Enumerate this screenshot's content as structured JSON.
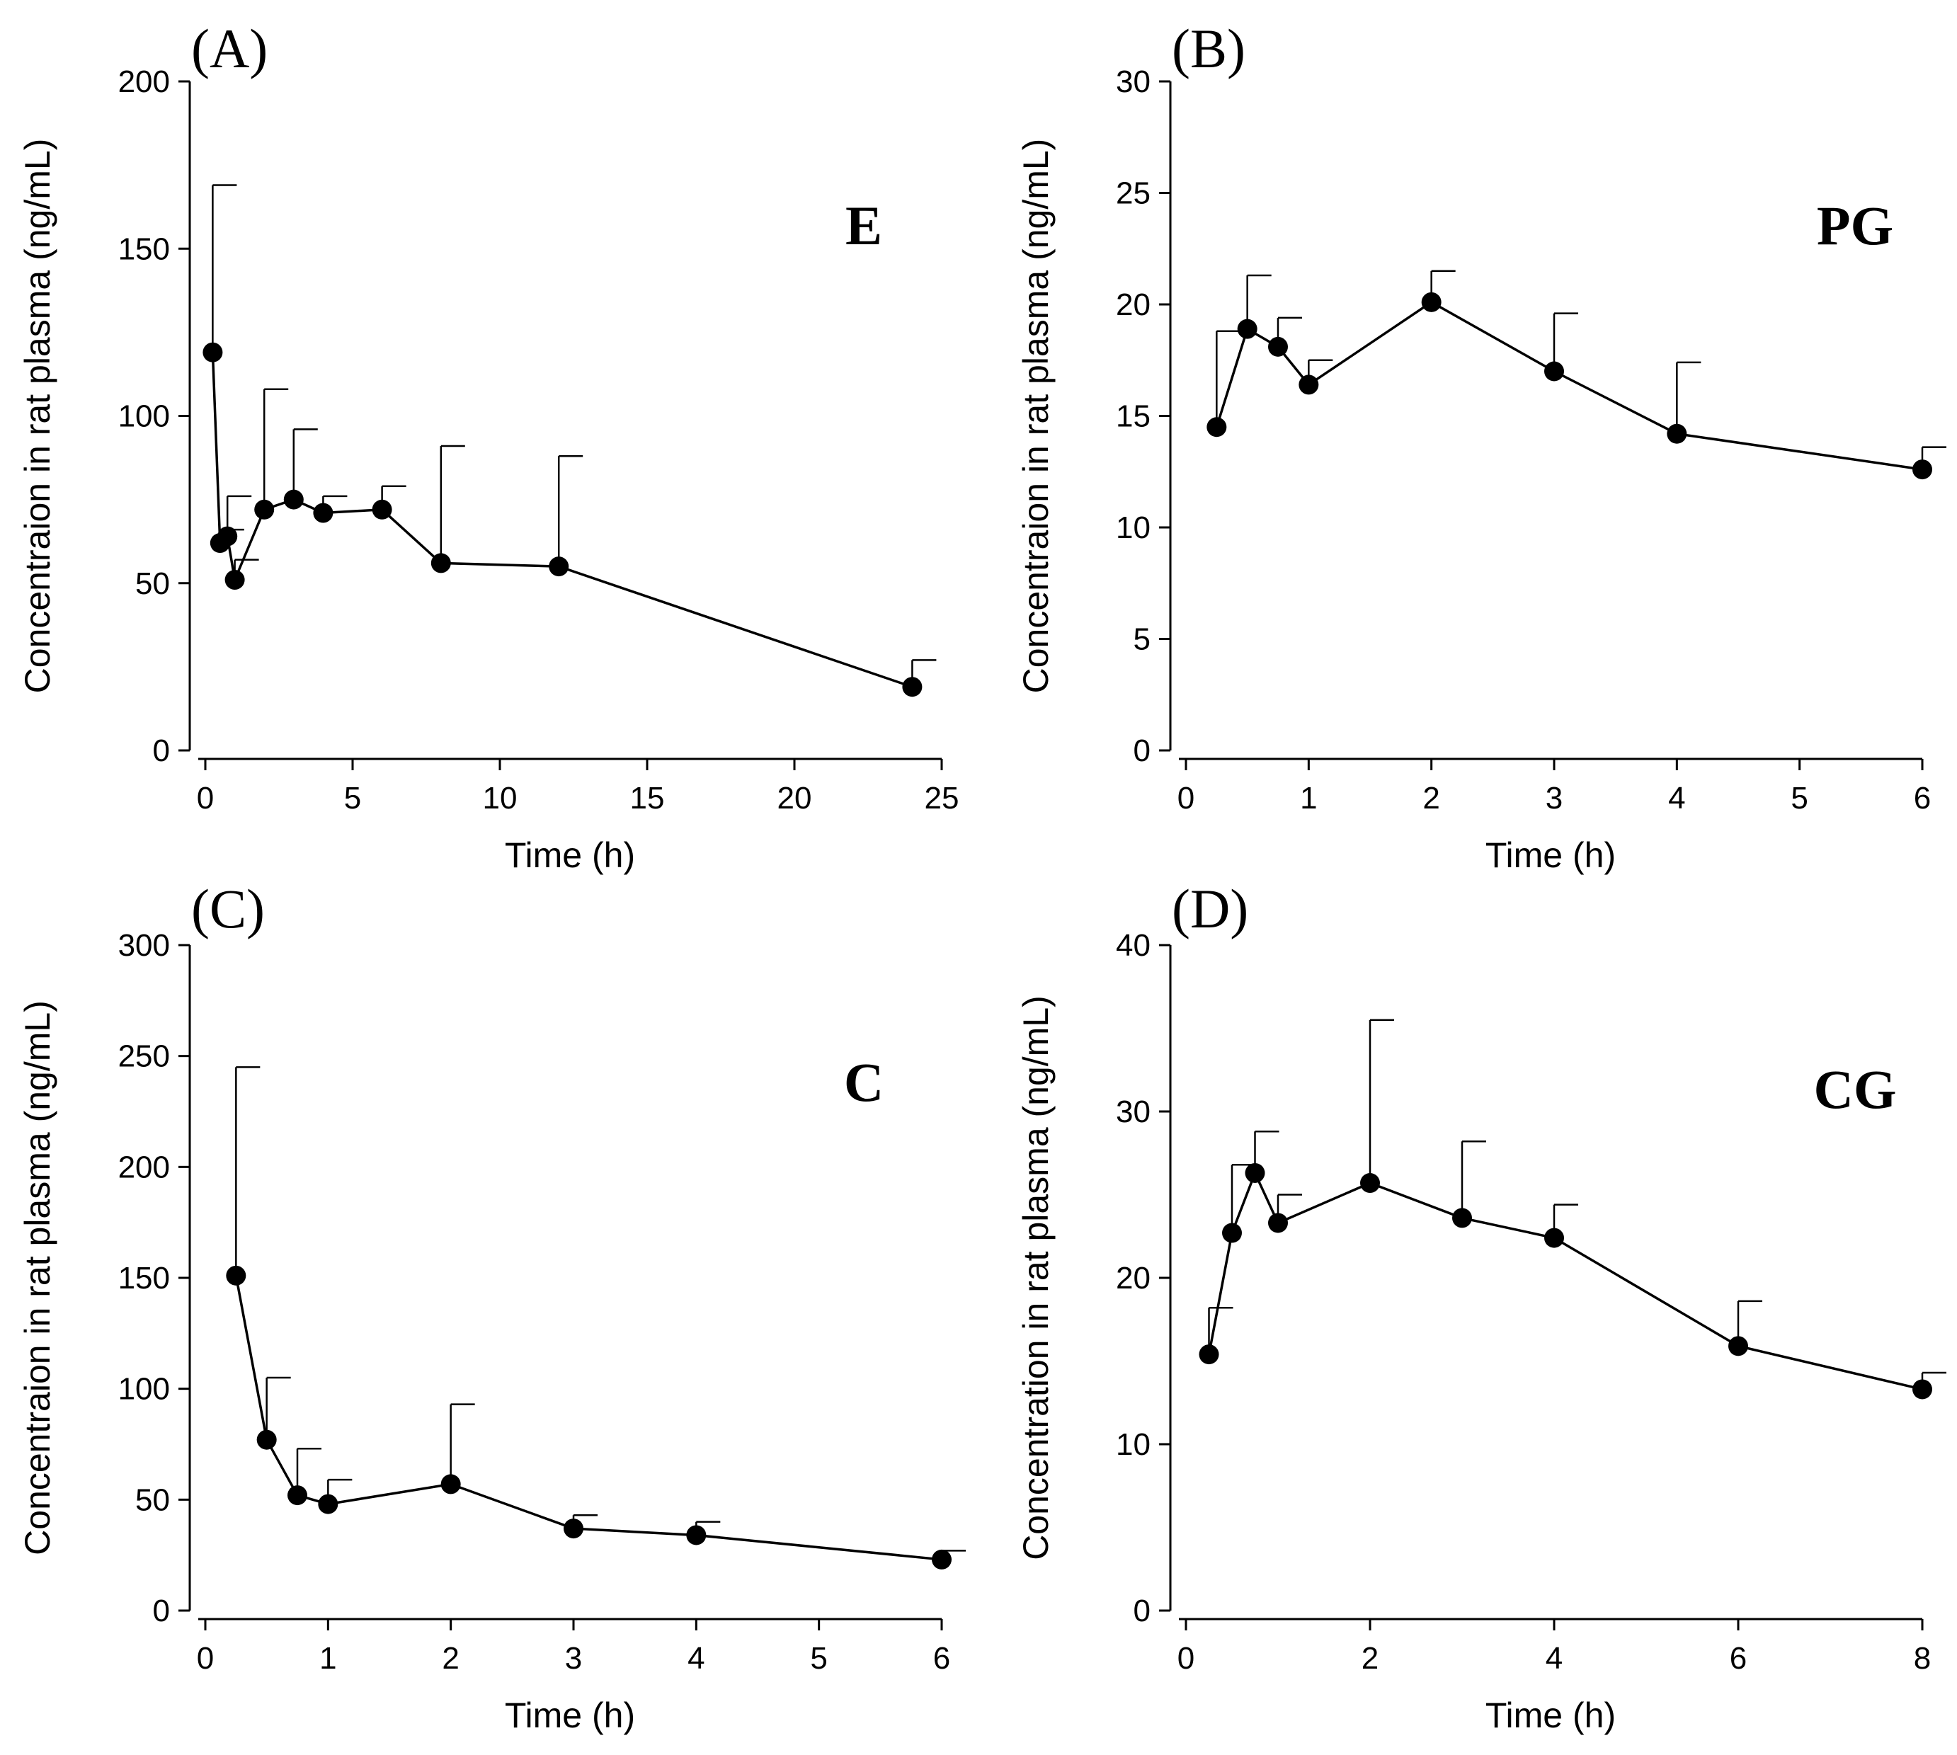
{
  "chart_data": [
    {
      "type": "line",
      "panel_label": "(A)",
      "annotation": "E",
      "xlabel": "Time (h)",
      "ylabel": "Concentraion in rat plasma (ng/mL)",
      "xlim": [
        0,
        25
      ],
      "ylim": [
        0,
        200
      ],
      "xticks": [
        0,
        5,
        10,
        15,
        20,
        25
      ],
      "yticks": [
        0,
        50,
        100,
        150,
        200
      ],
      "grid": false,
      "series": [
        {
          "x": [
            0.25,
            0.5,
            0.75,
            1,
            2,
            3,
            4,
            6,
            8,
            12,
            24
          ],
          "y": [
            119,
            62,
            64,
            51,
            72,
            75,
            71,
            72,
            56,
            55,
            19
          ],
          "error_upper": [
            169,
            66,
            76,
            57,
            108,
            96,
            76,
            79,
            91,
            88,
            27
          ]
        }
      ]
    },
    {
      "type": "line",
      "panel_label": "(B)",
      "annotation": "PG",
      "xlabel": "Time (h)",
      "ylabel": "Concentraion in rat plasma (ng/mL)",
      "xlim": [
        0,
        6
      ],
      "ylim": [
        0,
        30
      ],
      "xticks": [
        0,
        1,
        2,
        3,
        4,
        5,
        6
      ],
      "yticks": [
        0,
        5,
        10,
        15,
        20,
        25,
        30
      ],
      "grid": false,
      "series": [
        {
          "x": [
            0.25,
            0.5,
            0.75,
            1,
            2,
            3,
            4,
            6
          ],
          "y": [
            14.5,
            18.9,
            18.1,
            16.4,
            20.1,
            17.0,
            14.2,
            12.6
          ],
          "error_upper": [
            18.8,
            21.3,
            19.4,
            17.5,
            21.5,
            19.6,
            17.4,
            13.6
          ]
        }
      ]
    },
    {
      "type": "line",
      "panel_label": "(C)",
      "annotation": "C",
      "xlabel": "Time (h)",
      "ylabel": "Concentraion in rat plasma (ng/mL)",
      "xlim": [
        0,
        6
      ],
      "ylim": [
        0,
        300
      ],
      "xticks": [
        0,
        1,
        2,
        3,
        4,
        5,
        6
      ],
      "yticks": [
        0,
        50,
        100,
        150,
        200,
        250,
        300
      ],
      "grid": false,
      "series": [
        {
          "x": [
            0.25,
            0.5,
            0.75,
            1,
            2,
            3,
            4,
            6
          ],
          "y": [
            151,
            77,
            52,
            48,
            57,
            37,
            34,
            23
          ],
          "error_upper": [
            245,
            105,
            73,
            59,
            93,
            43,
            40,
            27
          ]
        }
      ]
    },
    {
      "type": "line",
      "panel_label": "(D)",
      "annotation": "CG",
      "xlabel": "Time (h)",
      "ylabel": "Concentration in rat plasma (ng/mL)",
      "xlim": [
        0,
        8
      ],
      "ylim": [
        0,
        40
      ],
      "xticks": [
        0,
        2,
        4,
        6,
        8
      ],
      "yticks": [
        0,
        10,
        20,
        30,
        40
      ],
      "grid": false,
      "series": [
        {
          "x": [
            0.25,
            0.5,
            0.75,
            1,
            2,
            3,
            4,
            6,
            8
          ],
          "y": [
            15.4,
            22.7,
            26.3,
            23.3,
            25.7,
            23.6,
            22.4,
            15.9,
            13.3
          ],
          "error_upper": [
            18.2,
            26.8,
            28.8,
            25.0,
            35.5,
            28.2,
            24.4,
            18.6,
            14.3
          ]
        }
      ]
    }
  ]
}
